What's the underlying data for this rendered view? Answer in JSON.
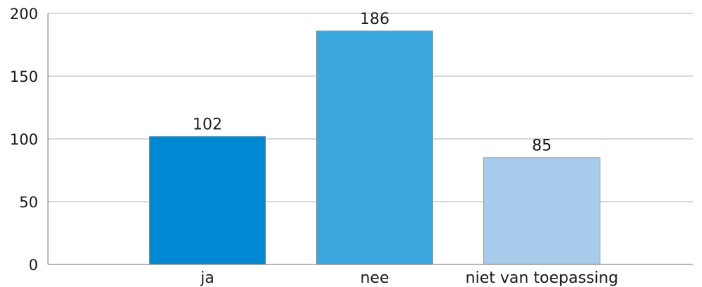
{
  "chart_data": {
    "type": "bar",
    "categories": [
      "ja",
      "nee",
      "niet van toepassing"
    ],
    "values": [
      102,
      186,
      85
    ],
    "data_labels": [
      "102",
      "186",
      "85"
    ],
    "colors": [
      "#0089d2",
      "#3aa8df",
      "#a6cbeb"
    ],
    "ylim": [
      0,
      200
    ],
    "yticks": [
      0,
      50,
      100,
      150,
      200
    ],
    "ytick_labels": [
      "0",
      "50",
      "100",
      "150",
      "200"
    ],
    "grid": true,
    "legend": "none"
  }
}
